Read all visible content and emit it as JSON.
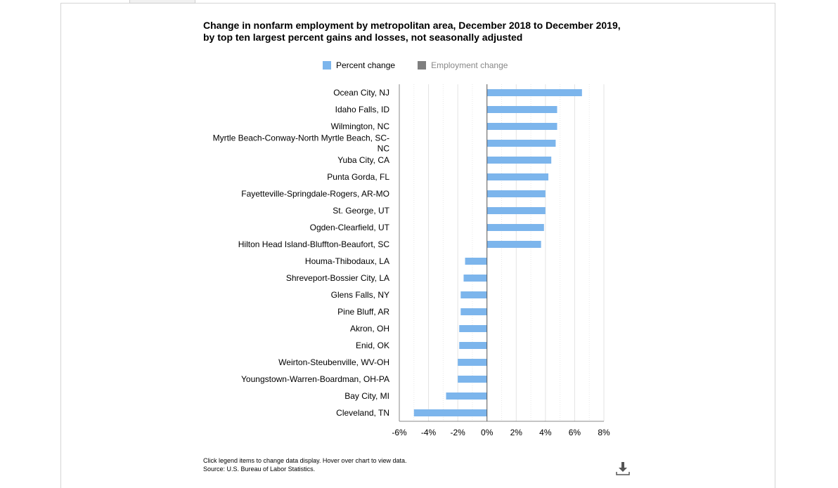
{
  "chart_data": {
    "type": "bar",
    "orientation": "horizontal",
    "title_line1": "Change in nonfarm employment by metropolitan area, December 2018 to December 2019,",
    "title_line2": "by top ten largest percent gains and losses, not seasonally adjusted",
    "legend": [
      {
        "label": "Percent change",
        "color": "#7cb5ec",
        "active": true
      },
      {
        "label": "Employment change",
        "color": "#7f7f7f",
        "active": false
      }
    ],
    "categories": [
      "Ocean City, NJ",
      "Idaho Falls, ID",
      "Wilmington, NC",
      "Myrtle Beach-Conway-North Myrtle Beach, SC-NC",
      "Yuba City, CA",
      "Punta Gorda, FL",
      "Fayetteville-Springdale-Rogers, AR-MO",
      "St. George, UT",
      "Ogden-Clearfield, UT",
      "Hilton Head Island-Bluffton-Beaufort, SC",
      "Houma-Thibodaux, LA",
      "Shreveport-Bossier City, LA",
      "Glens Falls, NY",
      "Pine Bluff, AR",
      "Akron, OH",
      "Enid, OK",
      "Weirton-Steubenville, WV-OH",
      "Youngstown-Warren-Boardman, OH-PA",
      "Bay City, MI",
      "Cleveland, TN"
    ],
    "category_label_lines": [
      [
        "Ocean City, NJ"
      ],
      [
        "Idaho Falls, ID"
      ],
      [
        "Wilmington, NC"
      ],
      [
        "Myrtle Beach-Conway-North Myrtle Beach, SC-",
        "NC"
      ],
      [
        "Yuba City, CA"
      ],
      [
        "Punta Gorda, FL"
      ],
      [
        "Fayetteville-Springdale-Rogers, AR-MO"
      ],
      [
        "St. George, UT"
      ],
      [
        "Ogden-Clearfield, UT"
      ],
      [
        "Hilton Head Island-Bluffton-Beaufort, SC"
      ],
      [
        "Houma-Thibodaux, LA"
      ],
      [
        "Shreveport-Bossier City, LA"
      ],
      [
        "Glens Falls, NY"
      ],
      [
        "Pine Bluff, AR"
      ],
      [
        "Akron, OH"
      ],
      [
        "Enid, OK"
      ],
      [
        "Weirton-Steubenville, WV-OH"
      ],
      [
        "Youngstown-Warren-Boardman, OH-PA"
      ],
      [
        "Bay City, MI"
      ],
      [
        "Cleveland, TN"
      ]
    ],
    "series": [
      {
        "name": "Percent change",
        "values": [
          6.5,
          4.8,
          4.8,
          4.7,
          4.4,
          4.2,
          4.0,
          4.0,
          3.9,
          3.7,
          -1.5,
          -1.6,
          -1.8,
          -1.8,
          -1.9,
          -1.9,
          -2.0,
          -2.0,
          -2.8,
          -5.0
        ]
      }
    ],
    "ticks": [
      "-6%",
      "-4%",
      "-2%",
      "0%",
      "2%",
      "4%",
      "6%",
      "8%"
    ],
    "xlim": [
      -6,
      8
    ],
    "grid": true
  },
  "footer": {
    "note": "Click legend items to change data display. Hover over chart to view data.",
    "source": "Source: U.S. Bureau of Labor Statistics."
  },
  "icons": {
    "download": "download-icon"
  }
}
